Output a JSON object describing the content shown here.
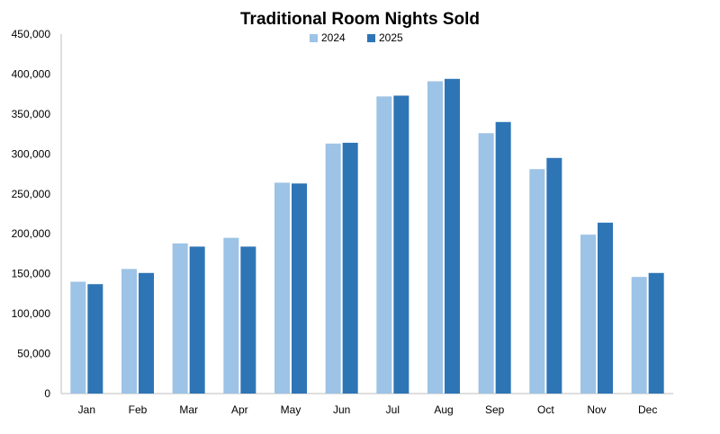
{
  "chart_data": {
    "type": "bar",
    "title": "Traditional Room Nights Sold",
    "xlabel": "",
    "ylabel": "",
    "categories": [
      "Jan",
      "Feb",
      "Mar",
      "Apr",
      "May",
      "Jun",
      "Jul",
      "Aug",
      "Sep",
      "Oct",
      "Nov",
      "Dec"
    ],
    "series": [
      {
        "name": "2024",
        "color": "#9dc3e6",
        "values": [
          140000,
          156000,
          188000,
          195000,
          264000,
          313000,
          372000,
          391000,
          326000,
          281000,
          199000,
          146000
        ]
      },
      {
        "name": "2025",
        "color": "#2e75b6",
        "values": [
          137000,
          151000,
          184000,
          184000,
          263000,
          314000,
          373000,
          394000,
          340000,
          295000,
          214000,
          151000
        ]
      }
    ],
    "ylim": [
      0,
      450000
    ],
    "yticks": [
      0,
      50000,
      100000,
      150000,
      200000,
      250000,
      300000,
      350000,
      400000,
      450000
    ],
    "ytick_labels": [
      "0",
      "50,000",
      "100,000",
      "150,000",
      "200,000",
      "250,000",
      "300,000",
      "350,000",
      "400,000",
      "450,000"
    ],
    "grid": false,
    "legend_position": "top-center"
  }
}
